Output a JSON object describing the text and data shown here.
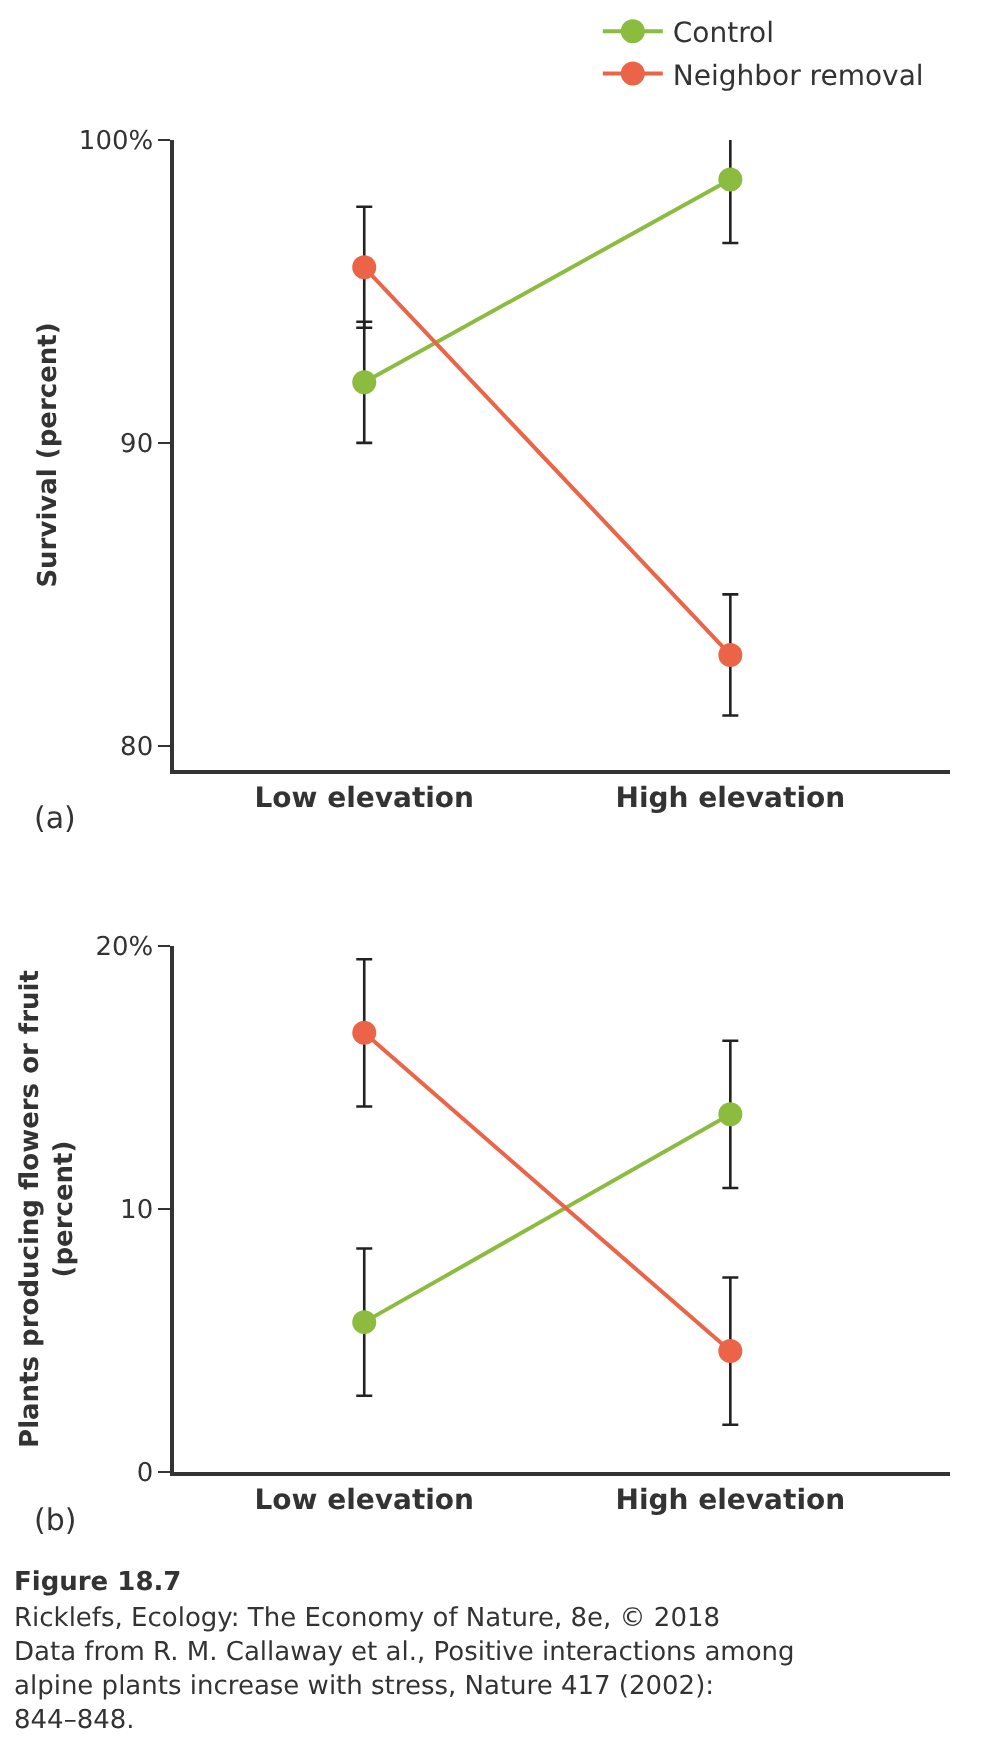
{
  "chart_data": [
    {
      "type": "line",
      "ylabel": "Survival (percent)",
      "categories": [
        "Low elevation",
        "High elevation"
      ],
      "series": [
        {
          "name": "Control",
          "color": "#8cbc3f",
          "values": [
            92.0,
            98.7
          ],
          "errors": [
            2.0,
            2.1
          ]
        },
        {
          "name": "Neighbor removal",
          "color": "#ec6448",
          "values": [
            95.8,
            83.0
          ],
          "errors": [
            2.0,
            2.0
          ]
        }
      ],
      "ylim": [
        79.2,
        100
      ],
      "yticks": [
        80,
        90,
        {
          "value": 100,
          "label": "100%"
        }
      ],
      "legend": "top right",
      "marker": "circle",
      "line_style": "solid",
      "annotations": [
        "(a)"
      ]
    },
    {
      "type": "line",
      "ylabel": "Plants producing flowers or fruit\n(percent)",
      "categories": [
        "Low elevation",
        "High elevation"
      ],
      "series": [
        {
          "color": "#8cbc3f",
          "values": [
            5.7,
            13.6
          ],
          "errors": [
            2.8,
            2.8
          ]
        },
        {
          "color": "#ec6448",
          "values": [
            16.7,
            4.6
          ],
          "errors": [
            2.8,
            2.8
          ]
        }
      ],
      "ylim": [
        0,
        20
      ],
      "yticks": [
        0,
        10,
        {
          "value": 20,
          "label": "20%"
        }
      ],
      "marker": "circle",
      "line_style": "solid",
      "annotations": [
        "(b)",
        "Figure 18.7",
        "Ricklefs, Ecology: The Economy of Nature, 8e, © 2018",
        "Data from R. M. Callaway et al., Positive interactions among alpine plants increase with stress, Nature 417 (2002): 844–848."
      ]
    }
  ]
}
